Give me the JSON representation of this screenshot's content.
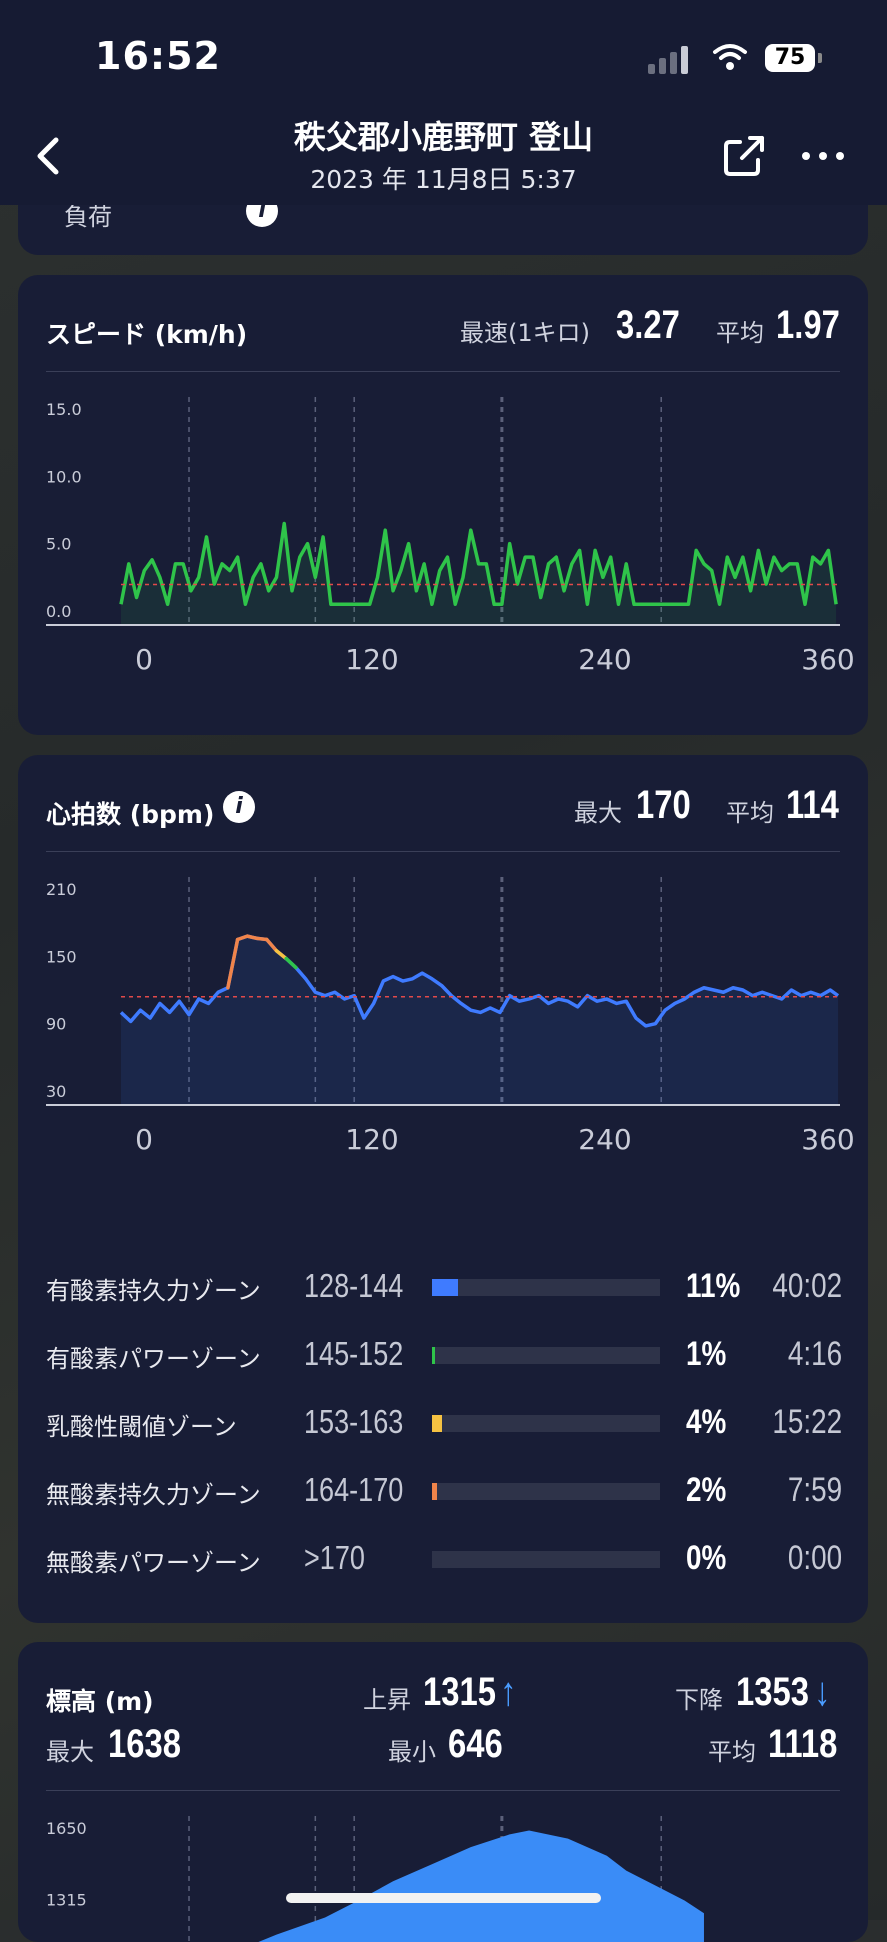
{
  "status": {
    "time": "16:52",
    "battery": "75"
  },
  "header": {
    "title": "秩父郡小鹿野町 登山",
    "subtitle": "2023 年 11月8日 5:37"
  },
  "prev_card": {
    "label": "負荷"
  },
  "colors": {
    "speed_line": "#2fc44a",
    "hr_line": "#3f7bff",
    "avg_line": "#e24a4a",
    "elev_fill": "#3a8cf7",
    "accent_arrow": "#4a9cff"
  },
  "speed": {
    "title": "スピード (km/h)",
    "max_label": "最速(1キロ)",
    "max_value": "3.27",
    "avg_label": "平均",
    "avg_value": "1.97"
  },
  "heart_rate": {
    "title": "心拍数 (bpm)",
    "max_label": "最大",
    "max_value": "170",
    "avg_label": "平均",
    "avg_value": "114",
    "zones": [
      {
        "name": "有酸素持久力ゾーン",
        "range": "128-144",
        "percent": "11%",
        "time": "40:02",
        "fraction": 0.11,
        "color": "#3f7bff"
      },
      {
        "name": "有酸素パワーゾーン",
        "range": "145-152",
        "percent": "1%",
        "time": "4:16",
        "fraction": 0.01,
        "color": "#2fc44a"
      },
      {
        "name": "乳酸性閾値ゾーン",
        "range": "153-163",
        "percent": "4%",
        "time": "15:22",
        "fraction": 0.04,
        "color": "#f5c242"
      },
      {
        "name": "無酸素持久力ゾーン",
        "range": "164-170",
        "percent": "2%",
        "time": "7:59",
        "fraction": 0.02,
        "color": "#f0844a"
      },
      {
        "name": "無酸素パワーゾーン",
        "range": ">170",
        "percent": "0%",
        "time": "0:00",
        "fraction": 0.0,
        "color": "#e24a4a"
      }
    ]
  },
  "elevation": {
    "title": "標高 (m)",
    "ascent_label": "上昇",
    "ascent_value": "1315",
    "ascent_arrow": "↑",
    "descent_label": "下降",
    "descent_value": "1353",
    "descent_arrow": "↓",
    "max_label": "最大",
    "max_value": "1638",
    "min_label": "最小",
    "min_value": "646",
    "avg_label": "平均",
    "avg_value": "1118"
  },
  "chart_data": [
    {
      "type": "line",
      "title": "スピード (km/h)",
      "ylabel": "km/h",
      "y_ticks": [
        "15.0",
        "10.0",
        "5.0",
        "0.0"
      ],
      "ylim": [
        0,
        15
      ],
      "x_ticks": [
        "0",
        "120",
        "240",
        "360"
      ],
      "xlim": [
        0,
        370
      ],
      "average": 1.97,
      "x": [
        0,
        4,
        8,
        12,
        16,
        20,
        24,
        28,
        32,
        36,
        40,
        44,
        48,
        52,
        56,
        60,
        64,
        68,
        72,
        76,
        80,
        84,
        88,
        92,
        96,
        100,
        104,
        108,
        112,
        116,
        120,
        124,
        128,
        132,
        136,
        140,
        144,
        148,
        152,
        156,
        160,
        164,
        168,
        172,
        176,
        180,
        184,
        188,
        192,
        196,
        200,
        204,
        208,
        212,
        216,
        220,
        224,
        228,
        232,
        236,
        240,
        244,
        248,
        252,
        256,
        260,
        264,
        268,
        272,
        276,
        280,
        284,
        288,
        292,
        296,
        300,
        304,
        308,
        312,
        316,
        320,
        324,
        328,
        332,
        336,
        340,
        344,
        348,
        352,
        356,
        360,
        364,
        368
      ],
      "y": [
        0.5,
        3.5,
        1,
        3,
        3.8,
        2.5,
        0.5,
        3.5,
        3.5,
        1.5,
        2.5,
        5.5,
        2,
        3.5,
        3,
        4,
        0.5,
        2.5,
        3.5,
        1.5,
        2.5,
        6.5,
        1.5,
        4,
        5,
        2.5,
        5.5,
        0.5,
        0.5,
        0.5,
        0.5,
        0.5,
        0.5,
        2.5,
        6,
        1.5,
        3,
        5,
        1.5,
        3.5,
        0.5,
        3,
        4,
        0.5,
        2.5,
        6,
        3.5,
        3.5,
        0.5,
        0.5,
        5,
        2,
        4,
        4,
        1,
        3.5,
        4,
        1.5,
        3.5,
        4.5,
        0.5,
        4.5,
        2.5,
        4,
        0.5,
        3.5,
        0.5,
        0.5,
        0.5,
        0.5,
        0.5,
        0.5,
        0.5,
        0.5,
        4.5,
        3.5,
        3,
        0.5,
        4,
        2.5,
        4,
        1.5,
        4.5,
        2,
        4,
        3,
        3.5,
        3.5,
        0.5,
        4,
        3.5,
        4.5,
        0.5
      ]
    },
    {
      "type": "line",
      "title": "心拍数 (bpm)",
      "ylabel": "bpm",
      "y_ticks": [
        "210",
        "150",
        "90",
        "30"
      ],
      "ylim": [
        30,
        210
      ],
      "x_ticks": [
        "0",
        "120",
        "240",
        "360"
      ],
      "xlim": [
        0,
        370
      ],
      "average": 114,
      "x": [
        0,
        5,
        10,
        15,
        20,
        25,
        30,
        35,
        40,
        45,
        50,
        55,
        60,
        65,
        70,
        75,
        80,
        85,
        90,
        95,
        100,
        105,
        110,
        115,
        120,
        125,
        130,
        135,
        140,
        145,
        150,
        155,
        160,
        165,
        170,
        175,
        180,
        185,
        190,
        195,
        200,
        205,
        210,
        215,
        220,
        225,
        230,
        235,
        240,
        245,
        250,
        255,
        260,
        265,
        270,
        275,
        280,
        285,
        290,
        295,
        300,
        305,
        310,
        315,
        320,
        325,
        330,
        335,
        340,
        345,
        350,
        355,
        360,
        365,
        369
      ],
      "y": [
        100,
        92,
        102,
        95,
        108,
        100,
        110,
        98,
        112,
        108,
        118,
        122,
        165,
        168,
        166,
        165,
        155,
        148,
        140,
        130,
        118,
        115,
        118,
        112,
        115,
        95,
        108,
        128,
        132,
        128,
        130,
        135,
        130,
        124,
        115,
        108,
        102,
        100,
        104,
        100,
        115,
        110,
        112,
        115,
        108,
        112,
        110,
        105,
        115,
        110,
        112,
        108,
        110,
        95,
        88,
        90,
        102,
        108,
        112,
        118,
        122,
        120,
        118,
        122,
        120,
        115,
        118,
        115,
        112,
        120,
        115,
        118,
        115,
        120,
        115
      ]
    },
    {
      "type": "area",
      "title": "標高 (m)",
      "ylabel": "m",
      "y_ticks": [
        "1650",
        "1315"
      ],
      "ylim": [
        646,
        1650
      ],
      "x": [
        0,
        40,
        80,
        105,
        120,
        140,
        160,
        180,
        200,
        210,
        230,
        250,
        260,
        275,
        290,
        300
      ],
      "y": [
        900,
        1000,
        1150,
        1230,
        1300,
        1400,
        1480,
        1560,
        1620,
        1638,
        1600,
        1520,
        1450,
        1380,
        1310,
        1250
      ]
    }
  ]
}
